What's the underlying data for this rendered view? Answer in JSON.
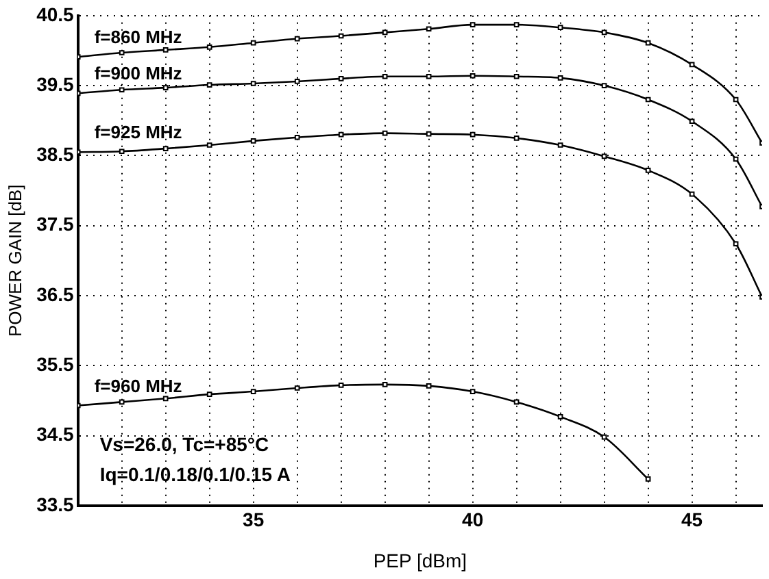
{
  "chart_data": {
    "type": "line",
    "xlabel": "PEP [dBm]",
    "ylabel": "POWER GAIN [dB]",
    "xlim": [
      31,
      46.6
    ],
    "xticks": [
      {
        "value": 31,
        "label": null
      },
      {
        "value": 32,
        "label": null
      },
      {
        "value": 33,
        "label": null
      },
      {
        "value": 34,
        "label": null
      },
      35,
      {
        "value": 36,
        "label": null
      },
      {
        "value": 37,
        "label": null
      },
      {
        "value": 38,
        "label": null
      },
      {
        "value": 39,
        "label": null
      },
      40,
      {
        "value": 41,
        "label": null
      },
      {
        "value": 42,
        "label": null
      },
      {
        "value": 43,
        "label": null
      },
      {
        "value": 44,
        "label": null
      },
      45,
      {
        "value": 46,
        "label": null
      }
    ],
    "ylim": [
      33.5,
      40.5
    ],
    "yticks": [
      33.5,
      34.5,
      35.5,
      36.5,
      37.5,
      38.5,
      39.5,
      40.5
    ],
    "grid": true,
    "legend": false,
    "marker": "square",
    "line_style": "solid",
    "series": [
      {
        "name": "f=860 MHz",
        "color": "#000000",
        "x": [
          31,
          32,
          33,
          34,
          35,
          36,
          37,
          38,
          39,
          40,
          41,
          42,
          43,
          44,
          45,
          46,
          46.6
        ],
        "values": [
          39.91,
          39.97,
          40.01,
          40.05,
          40.11,
          40.17,
          40.21,
          40.26,
          40.31,
          40.37,
          40.37,
          40.33,
          40.26,
          40.11,
          39.8,
          39.3,
          38.68
        ]
      },
      {
        "name": "f=900 MHz",
        "color": "#000000",
        "x": [
          31,
          32,
          33,
          34,
          35,
          36,
          37,
          38,
          39,
          40,
          41,
          42,
          43,
          44,
          45,
          46,
          46.6
        ],
        "values": [
          39.39,
          39.44,
          39.47,
          39.51,
          39.53,
          39.56,
          39.6,
          39.63,
          39.63,
          39.64,
          39.63,
          39.61,
          39.5,
          39.3,
          38.99,
          38.45,
          37.77
        ]
      },
      {
        "name": "f=925 MHz",
        "color": "#000000",
        "x": [
          31,
          32,
          33,
          34,
          35,
          36,
          37,
          38,
          39,
          40,
          41,
          42,
          43,
          44,
          45,
          46,
          46.6
        ],
        "values": [
          38.55,
          38.56,
          38.6,
          38.65,
          38.71,
          38.76,
          38.8,
          38.82,
          38.81,
          38.8,
          38.75,
          38.65,
          38.49,
          38.29,
          37.95,
          37.24,
          36.48
        ]
      },
      {
        "name": "f=960 MHz",
        "color": "#000000",
        "x": [
          31,
          32,
          33,
          34,
          35,
          36,
          37,
          38,
          39,
          40,
          41,
          42,
          43,
          44
        ],
        "values": [
          34.93,
          34.98,
          35.03,
          35.09,
          35.13,
          35.18,
          35.22,
          35.23,
          35.21,
          35.13,
          34.98,
          34.77,
          34.48,
          33.88
        ]
      }
    ],
    "annotations": [
      "Vs=26.0, Tc=+85°C",
      "Iq=0.1/0.18/0.1/0.15 A"
    ]
  }
}
